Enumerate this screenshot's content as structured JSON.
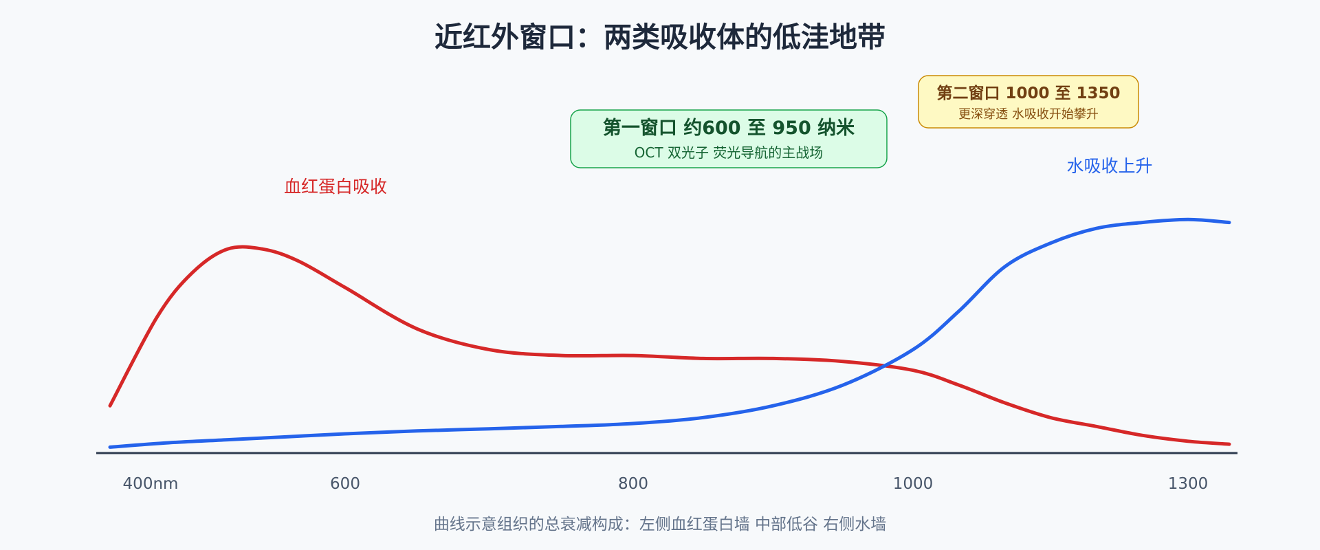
{
  "chart_data": {
    "type": "line",
    "title": "近红外窗口：两类吸收体的低洼地带",
    "xlabel": "",
    "ylabel": "",
    "x_ticks": [
      {
        "value": 400,
        "label": "400nm"
      },
      {
        "value": 600,
        "label": "600"
      },
      {
        "value": 800,
        "label": "800"
      },
      {
        "value": 1000,
        "label": "1000"
      },
      {
        "value": 1300,
        "label": "1300"
      }
    ],
    "ylim": [
      0,
      10
    ],
    "grid": false,
    "series": [
      {
        "name": "血红蛋白吸收",
        "color": "#d62828",
        "x": [
          400,
          440,
          470,
          500,
          530,
          560,
          600,
          650,
          700,
          750,
          800,
          850,
          900,
          950,
          1000,
          1050,
          1100,
          1150,
          1200,
          1250,
          1300,
          1345
        ],
        "y": [
          1.6,
          4.6,
          6.1,
          6.9,
          6.9,
          6.5,
          5.6,
          4.2,
          3.5,
          3.3,
          3.3,
          3.2,
          3.2,
          3.1,
          2.8,
          2.3,
          1.7,
          1.2,
          0.9,
          0.6,
          0.4,
          0.3
        ]
      },
      {
        "name": "水吸收上升",
        "color": "#2563eb",
        "x": [
          400,
          450,
          500,
          550,
          600,
          650,
          700,
          750,
          800,
          850,
          900,
          950,
          1000,
          1050,
          1100,
          1150,
          1200,
          1250,
          1300,
          1345
        ],
        "y": [
          0.2,
          0.35,
          0.45,
          0.55,
          0.65,
          0.75,
          0.82,
          0.9,
          1.0,
          1.2,
          1.6,
          2.3,
          3.5,
          4.8,
          6.3,
          7.1,
          7.6,
          7.8,
          7.9,
          7.8
        ]
      }
    ],
    "annotations": {
      "first_window": {
        "title": "第一窗口 约600 至 950 纳米",
        "subtitle": "OCT 双光子 荧光导航的主战场",
        "fill": "#dcfce7",
        "stroke": "#16a34a",
        "text_color": "#14532d",
        "sub_color": "#166534"
      },
      "second_window": {
        "title": "第二窗口 1000 至 1350",
        "subtitle": "更深穿透 水吸收开始攀升",
        "fill": "#fef9c3",
        "stroke": "#ca8a04",
        "text_color": "#713f12",
        "sub_color": "#854d0e"
      }
    },
    "caption": "曲线示意组织的总衰减构成：左侧血红蛋白墙 中部低谷 右侧水墙"
  }
}
